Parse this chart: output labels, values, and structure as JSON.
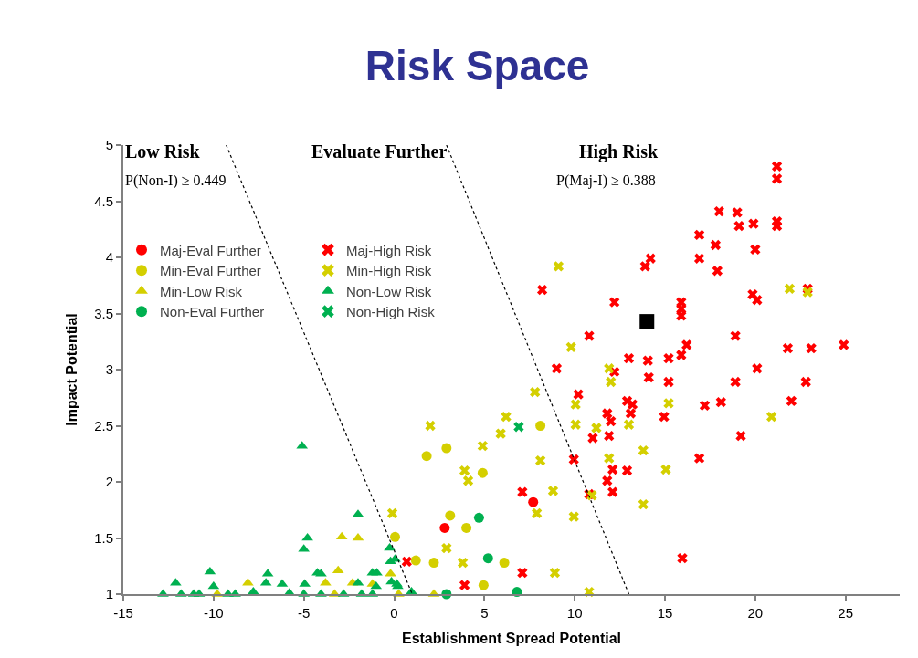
{
  "chart_data": {
    "type": "scatter",
    "title": "Risk Space",
    "xlabel": "Establishment Spread Potential",
    "ylabel": "Impact Potential",
    "xlim": [
      -15,
      28
    ],
    "xticks": [
      -15,
      -10,
      -5,
      0,
      5,
      10,
      15,
      20,
      25
    ],
    "ylim": [
      1,
      5
    ],
    "yticks": [
      1,
      1.5,
      2,
      2.5,
      3,
      3.5,
      4,
      4.5,
      5
    ],
    "legend": "top left",
    "annotations": [
      "Low Risk",
      "P(Non-I) ≥ 0.449",
      "Evaluate Further",
      "High Risk",
      "P(Maj-I) ≥ 0.388"
    ],
    "series": [
      {
        "name": "Maj-Eval Further",
        "color": "#ff0000",
        "marker": "circle",
        "x": [
          7.7,
          2.8
        ],
        "values": [
          1.82,
          1.59
        ]
      },
      {
        "name": "Min-Eval Further",
        "color": "#d4cf00",
        "marker": "circle",
        "x": [
          1.8,
          2.9,
          4.9,
          8.1,
          0.05,
          3.1,
          1.2,
          2.2,
          4.0,
          6.1,
          4.95
        ],
        "values": [
          2.23,
          2.3,
          2.08,
          2.5,
          1.51,
          1.7,
          1.3,
          1.28,
          1.59,
          1.28,
          1.08
        ]
      },
      {
        "name": "Min-Low Risk",
        "color": "#d4cf00",
        "marker": "triangle",
        "x": [
          -9.8,
          -8.1,
          -3.8,
          -3.1,
          -2.9,
          -2.0,
          -2.3,
          -3.3,
          -1.2,
          -0.2,
          0.25,
          2.2
        ],
        "values": [
          1.0,
          1.1,
          1.1,
          1.21,
          1.51,
          1.5,
          1.1,
          1.0,
          1.09,
          1.18,
          1.0,
          1.0
        ]
      },
      {
        "name": "Non-Eval Further",
        "color": "#00b050",
        "marker": "circle",
        "x": [
          4.7,
          5.2,
          2.9,
          6.8
        ],
        "values": [
          1.68,
          1.32,
          1.0,
          1.02
        ]
      },
      {
        "name": "Maj-High Risk",
        "color": "#ff0000",
        "marker": "cross",
        "x": [
          0.7,
          9.0,
          12.2,
          14.1,
          15.2,
          10.2,
          12.9,
          13.2,
          13.1,
          11.8,
          12.0,
          14.95,
          17.2,
          11.0,
          11.9,
          9.95,
          12.1,
          12.9,
          11.8,
          12.1,
          10.8,
          7.1,
          16.9,
          15.96,
          7.1,
          3.9,
          16.9,
          16.9,
          14.2,
          13.9,
          8.2,
          12.2,
          15.9,
          15.9,
          15.9,
          10.8,
          16.2,
          15.9,
          15.2,
          14.05,
          13.0,
          21.2,
          21.2,
          18.0,
          19.0,
          19.1,
          19.9,
          21.2,
          21.2,
          17.8,
          20.0,
          17.9,
          19.85,
          20.1,
          22.9,
          18.9,
          21.8,
          23.1,
          24.9,
          20.1,
          18.9,
          22.8,
          18.1,
          22.0,
          19.2
        ],
        "values": [
          1.29,
          3.01,
          2.98,
          2.93,
          2.89,
          2.78,
          2.72,
          2.69,
          2.61,
          2.61,
          2.54,
          2.58,
          2.68,
          2.39,
          2.41,
          2.2,
          2.11,
          2.1,
          2.01,
          1.91,
          1.89,
          1.91,
          2.21,
          1.32,
          1.19,
          1.08,
          4.2,
          3.99,
          3.99,
          3.92,
          3.71,
          3.6,
          3.6,
          3.54,
          3.48,
          3.3,
          3.22,
          3.13,
          3.1,
          3.08,
          3.1,
          4.81,
          4.7,
          4.41,
          4.4,
          4.28,
          4.3,
          4.32,
          4.28,
          4.11,
          4.07,
          3.88,
          3.67,
          3.62,
          3.72,
          3.3,
          3.19,
          3.19,
          3.22,
          3.01,
          2.89,
          2.89,
          2.71,
          2.72,
          2.41
        ]
      },
      {
        "name": "Min-High Risk",
        "color": "#d4cf00",
        "marker": "cross",
        "x": [
          2.0,
          -0.1,
          2.9,
          11.9,
          12.0,
          7.8,
          10.05,
          15.2,
          6.2,
          10.05,
          11.2,
          13.0,
          5.9,
          4.9,
          8.1,
          11.9,
          13.8,
          3.9,
          4.1,
          15.05,
          8.8,
          10.95,
          7.9,
          9.95,
          13.8,
          3.8,
          8.9,
          10.8,
          9.1,
          9.8,
          21.9,
          22.9,
          20.9
        ],
        "values": [
          2.5,
          1.72,
          1.41,
          3.01,
          2.89,
          2.8,
          2.69,
          2.7,
          2.58,
          2.51,
          2.48,
          2.51,
          2.43,
          2.32,
          2.19,
          2.21,
          2.28,
          2.1,
          2.01,
          2.11,
          1.92,
          1.88,
          1.72,
          1.69,
          1.8,
          1.28,
          1.19,
          1.02,
          3.92,
          3.2,
          3.72,
          3.69,
          2.58
        ]
      },
      {
        "name": "Non-Low Risk",
        "color": "#00b050",
        "marker": "triangle",
        "x": [
          -12.8,
          -12.1,
          -11.8,
          -11.1,
          -10.8,
          -10.2,
          -10.0,
          -9.2,
          -8.8,
          -7.8,
          -7.1,
          -7.0,
          -6.2,
          -5.8,
          -5.1,
          -4.8,
          -5.0,
          -4.95,
          -5.0,
          -4.25,
          -4.05,
          -4.05,
          -2.8,
          -2.0,
          -2.0,
          -1.8,
          -1.2,
          -0.96,
          -1.0,
          -1.2,
          -0.25,
          -0.2,
          0.05,
          -0.15,
          0.15,
          0.2,
          0.96
        ],
        "values": [
          1.0,
          1.1,
          1.0,
          1.0,
          1.0,
          1.2,
          1.07,
          1.0,
          1.0,
          1.02,
          1.1,
          1.18,
          1.09,
          1.01,
          2.32,
          1.5,
          1.4,
          1.09,
          1.0,
          1.19,
          1.18,
          1.0,
          1.0,
          1.71,
          1.1,
          1.0,
          1.19,
          1.19,
          1.07,
          1.0,
          1.41,
          1.29,
          1.31,
          1.11,
          1.09,
          1.07,
          1.02
        ]
      },
      {
        "name": "Non-High Risk",
        "color": "#00b050",
        "marker": "cross",
        "x": [
          6.9
        ],
        "values": [
          2.49
        ]
      },
      {
        "color": "#000000",
        "marker": "square",
        "x": [
          14.0
        ],
        "values": [
          3.43
        ]
      },
      {
        "type": "line",
        "color": "#000000",
        "line_style": "dotted",
        "x": [
          -9.3,
          1.0
        ],
        "values": [
          5,
          1
        ]
      },
      {
        "type": "line",
        "color": "#000000",
        "line_style": "dotted",
        "x": [
          2.9,
          13.0
        ],
        "values": [
          5,
          1
        ]
      }
    ]
  }
}
